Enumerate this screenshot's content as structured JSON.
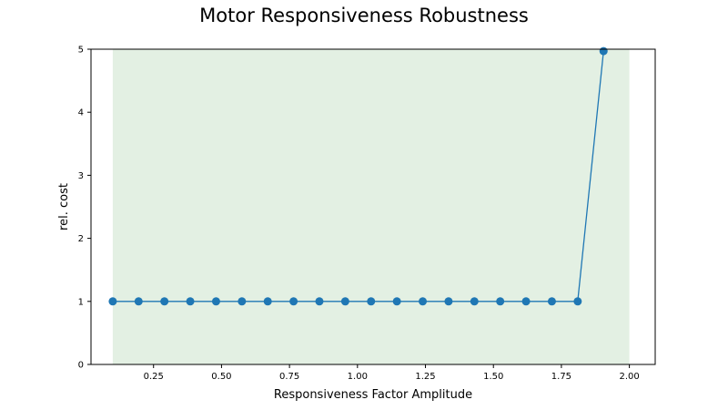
{
  "chart_data": {
    "type": "line",
    "title": "Motor Responsiveness Robustness",
    "xlabel": "Responsiveness Factor Amplitude",
    "ylabel": "rel. cost",
    "xlim": [
      0.02,
      2.095
    ],
    "ylim": [
      0,
      5
    ],
    "xticks": [
      0.25,
      0.5,
      0.75,
      1.0,
      1.25,
      1.5,
      1.75,
      2.0
    ],
    "xtick_labels": [
      "0.25",
      "0.50",
      "0.75",
      "1.00",
      "1.25",
      "1.50",
      "1.75",
      "2.00"
    ],
    "yticks": [
      0,
      1,
      2,
      3,
      4,
      5
    ],
    "ytick_labels": [
      "0",
      "1",
      "2",
      "3",
      "4",
      "5"
    ],
    "grid": false,
    "shaded_region": {
      "x_start": 0.1,
      "x_end": 2.0,
      "color": "#e3f0e3"
    },
    "line_color": "#1f77b4",
    "series": [
      {
        "x": [
          0.1,
          0.195,
          0.29,
          0.385,
          0.48,
          0.575,
          0.67,
          0.765,
          0.86,
          0.955,
          1.05,
          1.145,
          1.24,
          1.335,
          1.43,
          1.525,
          1.62,
          1.715,
          1.81,
          1.905
        ],
        "values": [
          1,
          1,
          1,
          1,
          1,
          1,
          1,
          1,
          1,
          1,
          1,
          1,
          1,
          1,
          1,
          1,
          1,
          1,
          1,
          4.97
        ]
      }
    ]
  }
}
